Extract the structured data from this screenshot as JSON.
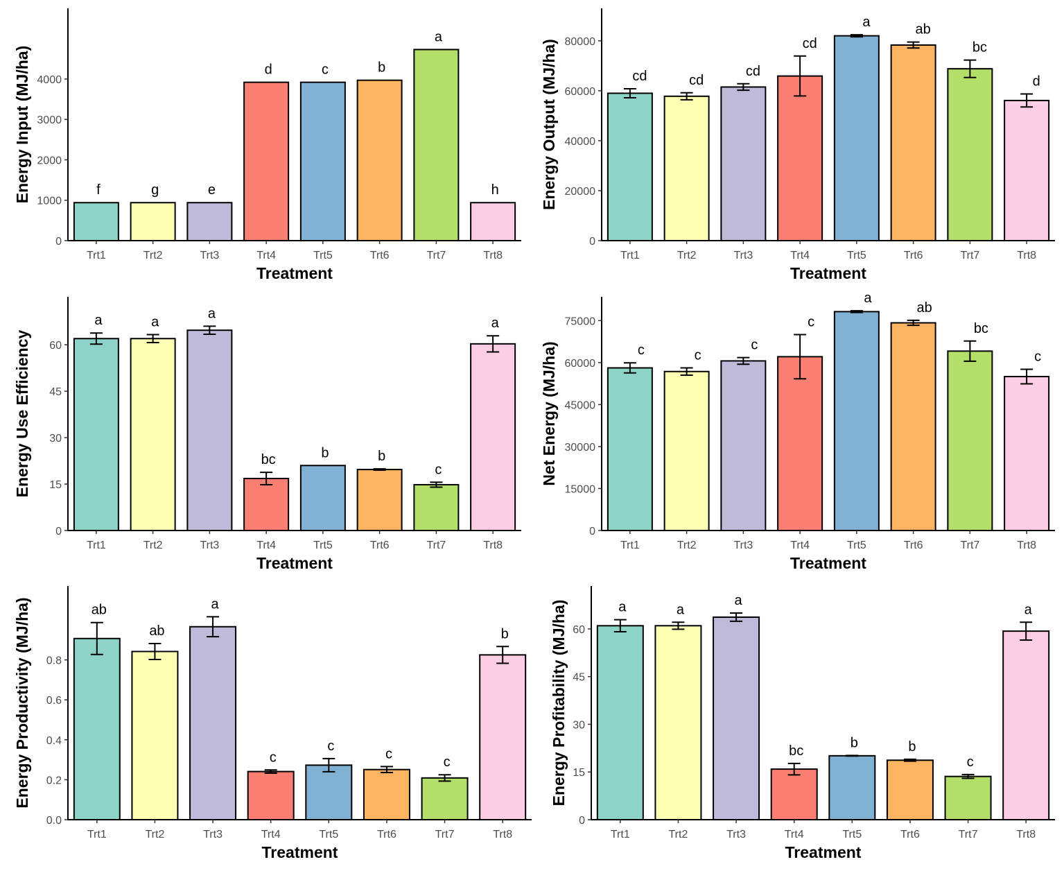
{
  "figure": {
    "xlabel": "Treatment",
    "categories": [
      "Trt1",
      "Trt2",
      "Trt3",
      "Trt4",
      "Trt5",
      "Trt6",
      "Trt7",
      "Trt8"
    ],
    "colors": [
      "#8dd3c7",
      "#ffffb3",
      "#bebada",
      "#fb8072",
      "#80b1d3",
      "#fdb462",
      "#b3de69",
      "#fccde5"
    ]
  },
  "chart_data": [
    {
      "type": "bar",
      "title": "",
      "xlabel": "Treatment",
      "ylabel": "Energy Input (MJ/ha)",
      "categories": [
        "Trt1",
        "Trt2",
        "Trt3",
        "Trt4",
        "Trt5",
        "Trt6",
        "Trt7",
        "Trt8"
      ],
      "values": [
        940,
        940,
        940,
        3920,
        3920,
        3970,
        4730,
        940
      ],
      "errors": [
        0,
        0,
        0,
        0,
        0,
        0,
        0,
        0
      ],
      "letters": [
        "f",
        "g",
        "e",
        "d",
        "c",
        "b",
        "a",
        "h"
      ],
      "ylim": [
        0,
        5750
      ],
      "yticks": [
        0,
        1000,
        2000,
        3000,
        4000
      ],
      "ytick_labels": [
        "0",
        "1000",
        "2000",
        "3000",
        "4000"
      ]
    },
    {
      "type": "bar",
      "title": "",
      "xlabel": "Treatment",
      "ylabel": "Energy Output (MJ/ha)",
      "categories": [
        "Trt1",
        "Trt2",
        "Trt3",
        "Trt4",
        "Trt5",
        "Trt6",
        "Trt7",
        "Trt8"
      ],
      "values": [
        59000,
        57800,
        61500,
        65900,
        82000,
        78300,
        68800,
        56100
      ],
      "errors": [
        1800,
        1400,
        1300,
        8000,
        400,
        1200,
        3500,
        2600
      ],
      "letters": [
        "cd",
        "cd",
        "cd",
        "cd",
        "a",
        "ab",
        "bc",
        "d"
      ],
      "ylim": [
        0,
        93000
      ],
      "yticks": [
        0,
        20000,
        40000,
        60000,
        80000
      ],
      "ytick_labels": [
        "0",
        "20000",
        "40000",
        "60000",
        "80000"
      ]
    },
    {
      "type": "bar",
      "title": "",
      "xlabel": "Treatment",
      "ylabel": "Energy Use Efficiency",
      "categories": [
        "Trt1",
        "Trt2",
        "Trt3",
        "Trt4",
        "Trt5",
        "Trt6",
        "Trt7",
        "Trt8"
      ],
      "values": [
        62,
        62,
        64.7,
        16.8,
        21,
        19.7,
        14.8,
        60.3
      ],
      "errors": [
        1.8,
        1.3,
        1.3,
        2,
        0,
        0.2,
        0.8,
        2.6
      ],
      "letters": [
        "a",
        "a",
        "a",
        "bc",
        "b",
        "b",
        "c",
        "a"
      ],
      "ylim": [
        0,
        75.5
      ],
      "yticks": [
        0,
        15,
        30,
        45,
        60
      ],
      "ytick_labels": [
        "0",
        "15",
        "30",
        "45",
        "60"
      ]
    },
    {
      "type": "bar",
      "title": "",
      "xlabel": "Treatment",
      "ylabel": "Net Energy (MJ/ha)",
      "categories": [
        "Trt1",
        "Trt2",
        "Trt3",
        "Trt4",
        "Trt5",
        "Trt6",
        "Trt7",
        "Trt8"
      ],
      "values": [
        58100,
        56800,
        60600,
        62100,
        78200,
        74200,
        64100,
        55000
      ],
      "errors": [
        1800,
        1300,
        1200,
        7900,
        300,
        900,
        3600,
        2600
      ],
      "letters": [
        "c",
        "c",
        "c",
        "c",
        "a",
        "ab",
        "bc",
        "c"
      ],
      "ylim": [
        0,
        83500
      ],
      "yticks": [
        0,
        15000,
        30000,
        45000,
        60000,
        75000
      ],
      "ytick_labels": [
        "0",
        "15000",
        "30000",
        "45000",
        "60000",
        "75000"
      ]
    },
    {
      "type": "bar",
      "title": "",
      "xlabel": "Treatment",
      "ylabel": "Energy Productivity (MJ/ha)",
      "categories": [
        "Trt1",
        "Trt2",
        "Trt3",
        "Trt4",
        "Trt5",
        "Trt6",
        "Trt7",
        "Trt8"
      ],
      "values": [
        0.907,
        0.842,
        0.966,
        0.241,
        0.273,
        0.251,
        0.209,
        0.825
      ],
      "errors": [
        0.08,
        0.04,
        0.05,
        0.008,
        0.033,
        0.015,
        0.016,
        0.042
      ],
      "letters": [
        "ab",
        "ab",
        "a",
        "c",
        "c",
        "c",
        "c",
        "b"
      ],
      "ylim": [
        0,
        1.17
      ],
      "yticks": [
        0,
        0.2,
        0.4,
        0.6,
        0.8
      ],
      "ytick_labels": [
        "0.0",
        "0.2",
        "0.4",
        "0.6",
        "0.8"
      ]
    },
    {
      "type": "bar",
      "title": "",
      "xlabel": "Treatment",
      "ylabel": "Energy Profitability (MJ/ha)",
      "categories": [
        "Trt1",
        "Trt2",
        "Trt3",
        "Trt4",
        "Trt5",
        "Trt6",
        "Trt7",
        "Trt8"
      ],
      "values": [
        61,
        61,
        63.7,
        15.9,
        20.1,
        18.7,
        13.6,
        59.3
      ],
      "errors": [
        1.9,
        1.1,
        1.3,
        1.8,
        0.1,
        0.3,
        0.6,
        2.8
      ],
      "letters": [
        "a",
        "a",
        "a",
        "bc",
        "b",
        "b",
        "c",
        "a"
      ],
      "ylim": [
        0,
        73.5
      ],
      "yticks": [
        0,
        15,
        30,
        45,
        60
      ],
      "ytick_labels": [
        "0",
        "15",
        "30",
        "45",
        "60"
      ]
    }
  ]
}
